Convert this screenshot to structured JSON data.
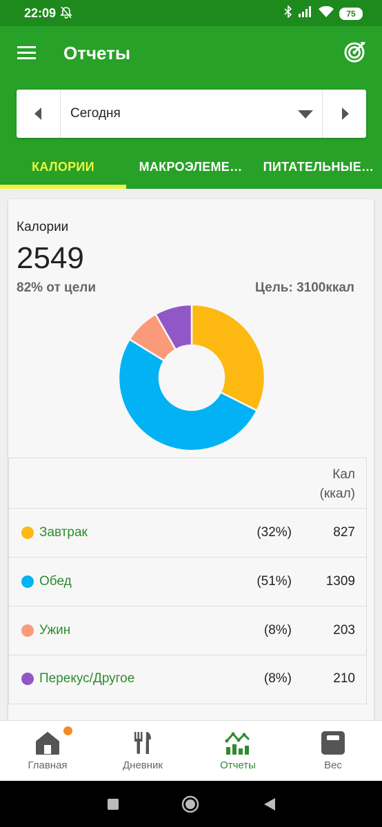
{
  "status": {
    "time": "22:09",
    "battery": "75"
  },
  "appbar": {
    "title": "Отчеты"
  },
  "date_picker": {
    "label": "Сегодня"
  },
  "tabs": [
    {
      "label": "КАЛОРИИ",
      "active": true
    },
    {
      "label": "МАКРОЭЛЕМЕ…",
      "active": false
    },
    {
      "label": "ПИТАТЕЛЬНЫЕ…",
      "active": false
    }
  ],
  "summary": {
    "label": "Калории",
    "value": "2549",
    "percent_of_goal": "82% от цели",
    "goal": "Цель: 3100ккал"
  },
  "chart_data": {
    "type": "pie",
    "categories": [
      "Завтрак",
      "Обед",
      "Ужин",
      "Перекус/Другое"
    ],
    "values": [
      827,
      1309,
      203,
      210
    ],
    "colors": [
      "#fdb811",
      "#02b2f5",
      "#fb9a7a",
      "#9257c6"
    ]
  },
  "table": {
    "header_line1": "Кал",
    "header_line2": "(ккал)",
    "rows": [
      {
        "meal": "Завтрак",
        "percent": "(32%)",
        "value": "827",
        "color": "#fdb811"
      },
      {
        "meal": "Обед",
        "percent": "(51%)",
        "value": "1309",
        "color": "#02b2f5"
      },
      {
        "meal": "Ужин",
        "percent": "(8%)",
        "value": "203",
        "color": "#fb9a7a"
      },
      {
        "meal": "Перекус/Другое",
        "percent": "(8%)",
        "value": "210",
        "color": "#9257c6"
      }
    ]
  },
  "bottom_nav": [
    {
      "label": "Главная",
      "icon": "home-icon",
      "badge": true
    },
    {
      "label": "Дневник",
      "icon": "fork-knife-icon"
    },
    {
      "label": "Отчеты",
      "icon": "reports-chart-icon",
      "active": true
    },
    {
      "label": "Вес",
      "icon": "scale-icon"
    }
  ]
}
